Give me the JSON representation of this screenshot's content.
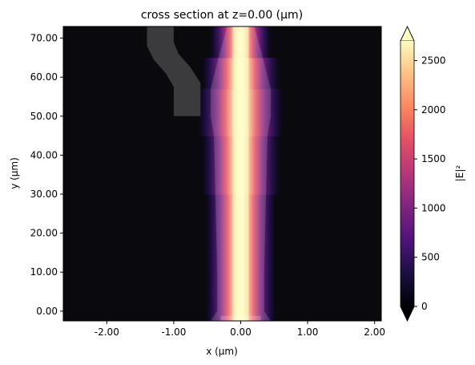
{
  "chart_data": {
    "type": "heatmap",
    "title": "cross section at z=0.00 (μm)",
    "xlabel": "x (μm)",
    "ylabel": "y (μm)",
    "xlim": [
      -2.65,
      2.1
    ],
    "ylim": [
      -2.5,
      73.0
    ],
    "x_ticks": [
      {
        "value": -2,
        "label": "-2.00"
      },
      {
        "value": -1,
        "label": "-1.00"
      },
      {
        "value": 0,
        "label": "0.00"
      },
      {
        "value": 1,
        "label": "1.00"
      },
      {
        "value": 2,
        "label": "2.00"
      }
    ],
    "y_ticks": [
      {
        "value": 0,
        "label": "0.00"
      },
      {
        "value": 10,
        "label": "10.00"
      },
      {
        "value": 20,
        "label": "20.00"
      },
      {
        "value": 30,
        "label": "30.00"
      },
      {
        "value": 40,
        "label": "40.00"
      },
      {
        "value": 50,
        "label": "50.00"
      },
      {
        "value": 60,
        "label": "60.00"
      },
      {
        "value": 70,
        "label": "70.00"
      }
    ],
    "colorbar": {
      "label": "|E|²",
      "range": [
        0,
        2700
      ],
      "extend": "both",
      "colormap": "magma",
      "ticks": [
        {
          "value": 0,
          "label": "0"
        },
        {
          "value": 500,
          "label": "500"
        },
        {
          "value": 1000,
          "label": "1000"
        },
        {
          "value": 1500,
          "label": "1500"
        },
        {
          "value": 2000,
          "label": "2000"
        },
        {
          "value": 2500,
          "label": "2500"
        }
      ]
    },
    "field_profile": {
      "peak_value": 2700,
      "width_um": [
        {
          "y": -2.5,
          "half_width": 0.22
        },
        {
          "y": 5,
          "half_width": 0.3
        },
        {
          "y": 15,
          "half_width": 0.3
        },
        {
          "y": 30,
          "half_width": 0.3
        },
        {
          "y": 45,
          "half_width": 0.33
        },
        {
          "y": 50,
          "half_width": 0.36
        },
        {
          "y": 57,
          "half_width": 0.33
        },
        {
          "y": 65,
          "half_width": 0.26
        },
        {
          "y": 73,
          "half_width": 0.2
        }
      ]
    },
    "structures": [
      {
        "name": "main-waveguide",
        "polygon": [
          [
            -0.45,
            -2.5
          ],
          [
            -0.35,
            0
          ],
          [
            -0.35,
            10
          ],
          [
            -0.4,
            45
          ],
          [
            -0.45,
            50
          ],
          [
            -0.45,
            57
          ],
          [
            -0.3,
            67
          ],
          [
            -0.2,
            73
          ],
          [
            0.2,
            73
          ],
          [
            0.3,
            67
          ],
          [
            0.45,
            57
          ],
          [
            0.45,
            50
          ],
          [
            0.4,
            45
          ],
          [
            0.35,
            10
          ],
          [
            0.35,
            0
          ],
          [
            0.45,
            -2.5
          ]
        ]
      },
      {
        "name": "bent-waveguide",
        "polygon": [
          [
            -1.4,
            73
          ],
          [
            -1.4,
            68
          ],
          [
            -1.3,
            64.5
          ],
          [
            -1.12,
            61
          ],
          [
            -1.0,
            57.5
          ],
          [
            -1.0,
            50
          ],
          [
            -0.6,
            50
          ],
          [
            -0.6,
            58.5
          ],
          [
            -0.75,
            62.5
          ],
          [
            -0.93,
            66
          ],
          [
            -1.0,
            69
          ],
          [
            -1.0,
            73
          ]
        ]
      },
      {
        "name": "bottom-port",
        "polygon": [
          [
            -0.3,
            -2.5
          ],
          [
            -0.3,
            -1.2
          ],
          [
            0.3,
            -1.2
          ],
          [
            0.3,
            -2.5
          ]
        ]
      }
    ]
  }
}
